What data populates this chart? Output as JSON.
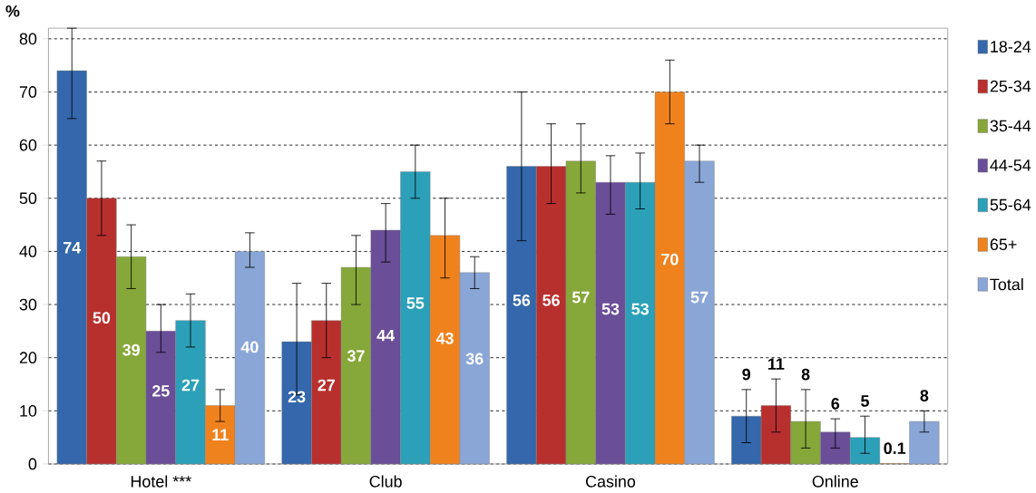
{
  "chart_data": {
    "type": "bar",
    "ylabel": "%",
    "categories": [
      "Hotel ***",
      "Club",
      "Casino",
      "Online"
    ],
    "series": [
      {
        "name": "18-24",
        "color": "#3467ab",
        "values": [
          74,
          23,
          56,
          9
        ],
        "errors": [
          [
            65,
            82
          ],
          [
            13,
            34
          ],
          [
            42,
            70
          ],
          [
            4,
            14
          ]
        ]
      },
      {
        "name": "25-34",
        "color": "#b8302e",
        "values": [
          50,
          27,
          56,
          11
        ],
        "errors": [
          [
            43,
            57
          ],
          [
            20,
            34
          ],
          [
            49,
            64
          ],
          [
            6,
            16
          ]
        ]
      },
      {
        "name": "35-44",
        "color": "#86a83a",
        "values": [
          39,
          37,
          57,
          8
        ],
        "errors": [
          [
            33,
            45
          ],
          [
            30,
            43
          ],
          [
            51,
            64
          ],
          [
            3,
            14
          ]
        ]
      },
      {
        "name": "44-54",
        "color": "#6a4e98",
        "values": [
          25,
          44,
          53,
          6
        ],
        "errors": [
          [
            21,
            30
          ],
          [
            38,
            49
          ],
          [
            47,
            58
          ],
          [
            3,
            8.5
          ]
        ]
      },
      {
        "name": "55-64",
        "color": "#2ba0b8",
        "values": [
          27,
          55,
          53,
          5
        ],
        "errors": [
          [
            22,
            32
          ],
          [
            50,
            60
          ],
          [
            48,
            58.5
          ],
          [
            2,
            9
          ]
        ]
      },
      {
        "name": "65+",
        "color": "#f0821e",
        "values": [
          11,
          43,
          70,
          0.1
        ],
        "errors": [
          [
            8,
            14
          ],
          [
            35,
            50
          ],
          [
            64,
            76
          ],
          null
        ]
      },
      {
        "name": "Total",
        "color": "#8aa6d6",
        "values": [
          40,
          36,
          57,
          8
        ],
        "errors": [
          [
            37,
            43.5
          ],
          [
            33,
            39
          ],
          [
            53,
            60
          ],
          [
            6,
            10
          ]
        ]
      }
    ],
    "ylim": [
      0,
      82
    ],
    "yticks": [
      0,
      10,
      20,
      30,
      40,
      50,
      60,
      70,
      80
    ],
    "grid": "y",
    "legend": "right",
    "data_labels": true
  }
}
